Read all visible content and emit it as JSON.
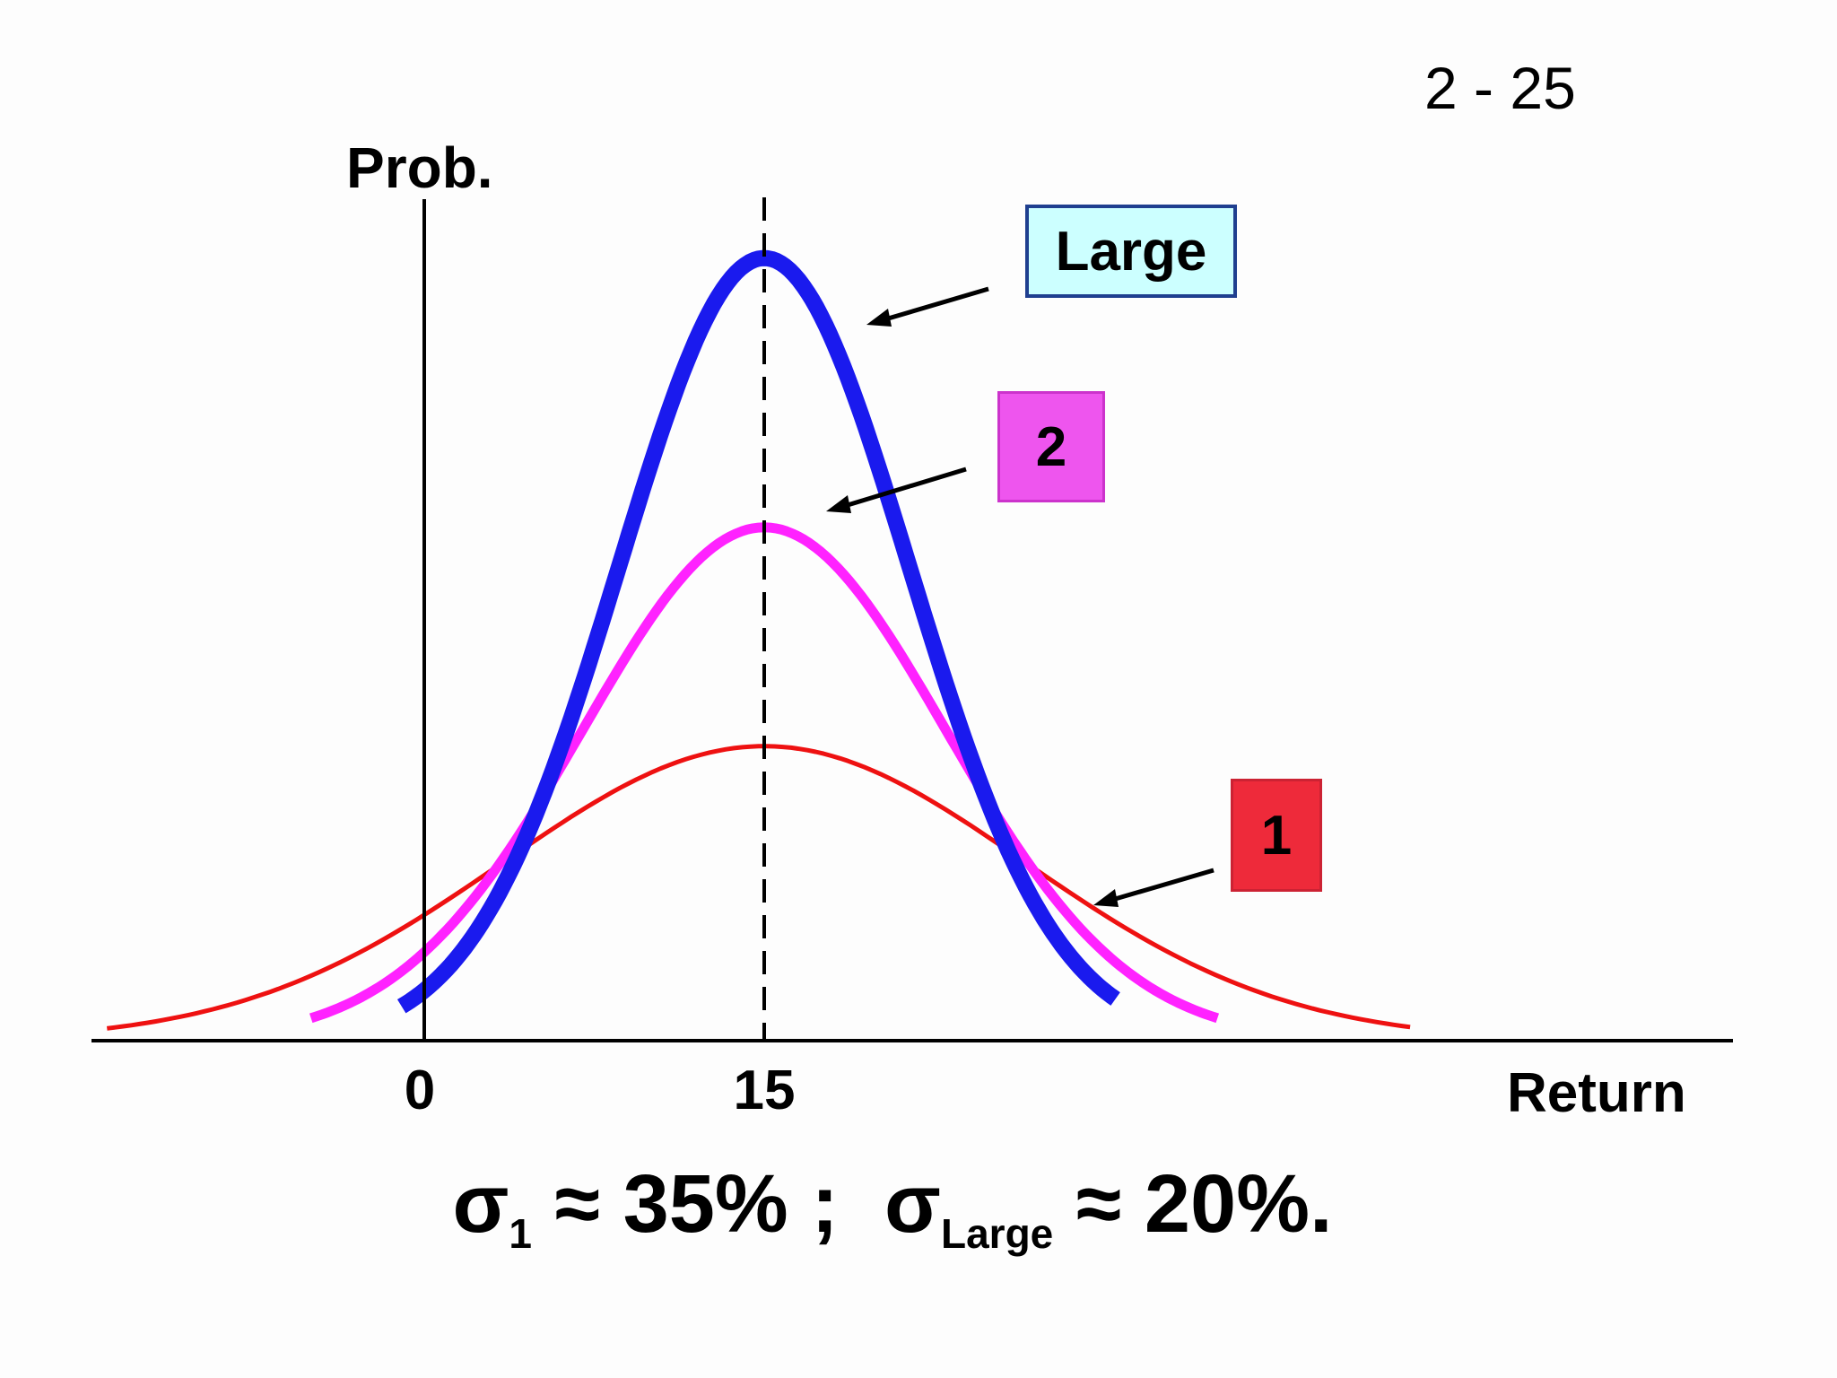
{
  "page_number": "2 - 25",
  "footnote": {
    "part1_symbol": "σ",
    "part1_sub": "1",
    "part1_rest": " ≈ 35% ;  ",
    "part2_symbol": "σ",
    "part2_sub": "Large",
    "part2_rest": " ≈ 20%."
  },
  "tags": {
    "large": "Large",
    "two": "2",
    "one": "1"
  },
  "colors": {
    "large": "#1a1aee",
    "two": "#ff22ff",
    "one": "#ee1111",
    "axis": "#000000"
  },
  "chart_data": {
    "type": "line",
    "title": "",
    "xlabel": "Return",
    "ylabel": "Prob.",
    "x_ticks": [
      "0",
      "15"
    ],
    "mean": 15,
    "reference_line": {
      "x": 15,
      "style": "dashed"
    },
    "xlim": [
      -14,
      57
    ],
    "ylim": [
      0,
      1
    ],
    "grid": false,
    "series": [
      {
        "name": "Large",
        "color": "#1a1aee",
        "sigma": 6.4,
        "peak": 0.93,
        "x_range": [
          -1,
          30.5
        ]
      },
      {
        "name": "2",
        "color": "#ff22ff",
        "sigma": 8.0,
        "peak": 0.61,
        "x_range": [
          -5,
          35
        ]
      },
      {
        "name": "1",
        "color": "#ee1111",
        "sigma": 11.5,
        "peak": 0.35,
        "x_range": [
          -14,
          43.5
        ]
      }
    ]
  }
}
